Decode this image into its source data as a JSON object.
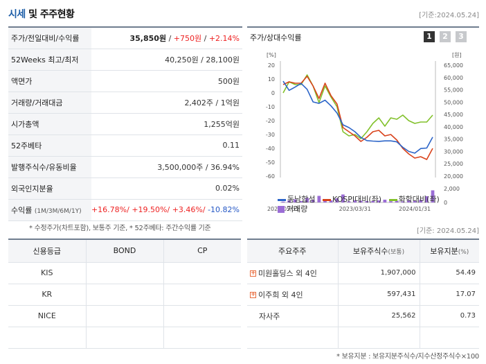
{
  "header": {
    "title_blue": "시세",
    "title_rest": " 및 주주현황",
    "date": "[기준:2024.05.24]"
  },
  "price_table": [
    {
      "label": "주가/전일대비/수익률"
    },
    {
      "label": "52Weeks 최고/최저",
      "value": "40,250원 / 28,100원"
    },
    {
      "label": "액면가",
      "value": "500원"
    },
    {
      "label": "거래량/거래대금",
      "value": "2,402주 / 1억원"
    },
    {
      "label": "시가총액",
      "value": "1,255억원"
    },
    {
      "label": "52주베타",
      "value": "0.11"
    },
    {
      "label": "발행주식수/유동비율",
      "value": "3,500,000주 / 36.94%"
    },
    {
      "label": "외국인지분율",
      "value": "0.02%"
    },
    {
      "label": "수익률",
      "label_small": "(1M/3M/6M/1Y)"
    }
  ],
  "price_row": {
    "price": "35,850원",
    "sep1": " / ",
    "change": "+750원",
    "sep2": " / ",
    "rate": "+2.14%"
  },
  "returns_row": {
    "r1": "+16.78%/",
    "r2": " +19.50%/",
    "r3": " +3.46%/",
    "r4": " -10.82%"
  },
  "note_left": "* 수정주가(차트포함), 보통주 기준, * 52주베타: 주간수익률 기준",
  "chart_panel": {
    "title": "주가/상대수익률",
    "period_buttons": [
      "1",
      "2",
      "3"
    ],
    "selected_button": "1",
    "legend": {
      "s1": "동남합성",
      "s2": "KOSPI대비(좌)",
      "s3": "화학대비(좌)",
      "vol": "거래량"
    }
  },
  "chart_data": {
    "type": "line",
    "left_axis": {
      "unit": "[%]",
      "ticks": [
        20,
        10,
        0,
        -10,
        -20,
        -30,
        -40,
        -50,
        -60
      ],
      "range": [
        -60,
        20
      ]
    },
    "right_axis": {
      "unit": "[원]",
      "ticks": [
        "65,000",
        "60,000",
        "55,000",
        "50,000",
        "45,000",
        "40,000",
        "35,000",
        "30,000",
        "25,000",
        "20,000"
      ],
      "range": [
        20000,
        65000
      ]
    },
    "volume_axis": {
      "ticks": [
        "2,000",
        "0"
      ],
      "range": [
        0,
        2000
      ]
    },
    "x_labels": [
      "2022/05/31",
      "2023/03/31",
      "2024/01/31"
    ],
    "x": [
      0,
      1,
      2,
      3,
      4,
      5,
      6,
      7,
      8,
      9,
      10,
      11,
      12,
      13,
      14,
      15,
      16,
      17,
      18,
      19,
      20,
      21,
      22,
      23,
      24,
      25
    ],
    "series": [
      {
        "name": "동남합성",
        "color": "#2b64c8",
        "axis": "right",
        "values": [
          58500,
          54800,
          56100,
          57600,
          55200,
          50100,
          49500,
          50800,
          48500,
          45600,
          40800,
          39700,
          38000,
          35700,
          34400,
          34200,
          34100,
          34300,
          34300,
          33900,
          31700,
          30000,
          29300,
          31200,
          31400,
          35800
        ]
      },
      {
        "name": "KOSPI대비(좌)",
        "color": "#d9421b",
        "axis": "left",
        "values": [
          6,
          8,
          7,
          7,
          12,
          5,
          -4,
          7,
          -2,
          -8,
          -25,
          -28,
          -31,
          -35,
          -32,
          -28,
          -27,
          -31,
          -30,
          -34,
          -40,
          -44,
          -47,
          -46,
          -48,
          -40
        ]
      },
      {
        "name": "화학대비(좌)",
        "color": "#82c12b",
        "axis": "left",
        "values": [
          0,
          8,
          6,
          6,
          13,
          5,
          -7,
          5,
          -3,
          -10,
          -28,
          -31,
          -30,
          -33,
          -28,
          -22,
          -18,
          -24,
          -18,
          -19,
          -16,
          -20,
          -22,
          -21,
          -21,
          -16
        ]
      }
    ],
    "volume": {
      "name": "거래량",
      "color": "#9b6dd6",
      "values": [
        120,
        300,
        450,
        200,
        650,
        400,
        950,
        220,
        300,
        600,
        1150,
        150,
        320,
        250,
        200,
        200,
        300,
        400,
        180,
        250,
        150,
        350,
        220,
        380,
        900,
        1750
      ]
    }
  },
  "date2": "[기준: 2024.05.24]",
  "rating_table": {
    "headers": [
      "신용등급",
      "BOND",
      "CP"
    ],
    "rows": [
      {
        "agency": "KIS",
        "bond": "",
        "cp": ""
      },
      {
        "agency": "KR",
        "bond": "",
        "cp": ""
      },
      {
        "agency": "NICE",
        "bond": "",
        "cp": ""
      },
      {
        "agency": "",
        "bond": "",
        "cp": ""
      }
    ]
  },
  "holders_table": {
    "h1": "주요주주",
    "h2": "보유주식수",
    "h2_small": "(보통)",
    "h3": "보유지분",
    "h3_small": "(%)",
    "rows": [
      {
        "name": "미원홀딩스 외 4인",
        "shares": "1,907,000",
        "pct": "54.49",
        "expand": "+"
      },
      {
        "name": "이주희 외 4인",
        "shares": "597,431",
        "pct": "17.07",
        "expand": "+"
      },
      {
        "name": "자사주",
        "shares": "25,562",
        "pct": "0.73"
      }
    ]
  },
  "note_right": "* 보유지분 : 보유지분주식수/지수산정주식수×100"
}
